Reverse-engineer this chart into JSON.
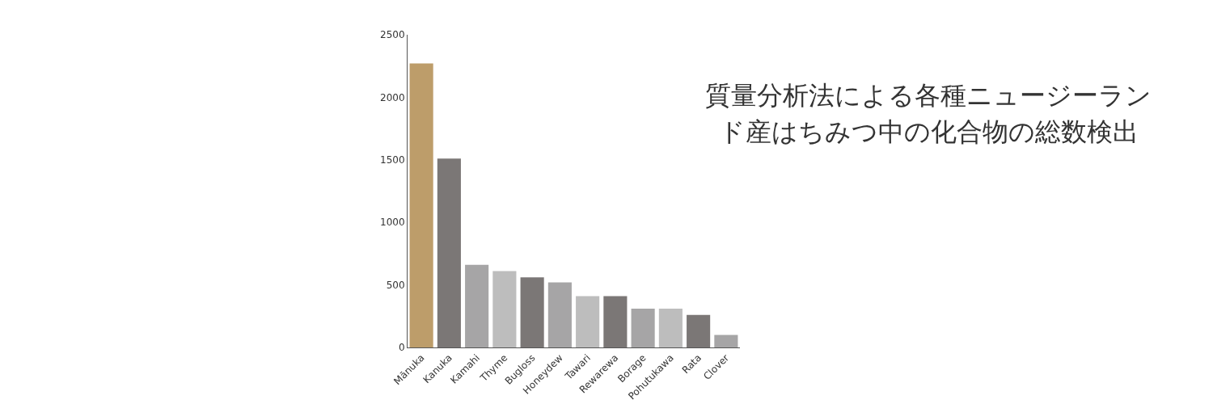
{
  "chart_data": {
    "type": "bar",
    "title": "質量分析法による各種ニュージーランド産はちみつ中の化合物の総数検出",
    "categories": [
      "Mānuka",
      "Kanuka",
      "Kamahi",
      "Thyme",
      "Bugloss",
      "Honeydew",
      "Tawari",
      "Rewarewa",
      "Borage",
      "Pohutukawa",
      "Rata",
      "Clover"
    ],
    "values": [
      2270,
      1510,
      660,
      610,
      560,
      520,
      410,
      410,
      310,
      310,
      260,
      100
    ],
    "colors": [
      "#bd9d6a",
      "#7b7776",
      "#a6a5a6",
      "#bdbdbd",
      "#7b7776",
      "#a6a5a6",
      "#bdbdbd",
      "#7b7776",
      "#a6a5a6",
      "#bdbdbd",
      "#7b7776",
      "#a6a5a6"
    ],
    "ylim": [
      0,
      2500
    ],
    "yticks": [
      0,
      500,
      1000,
      1500,
      2000,
      2500
    ],
    "grid": false
  }
}
